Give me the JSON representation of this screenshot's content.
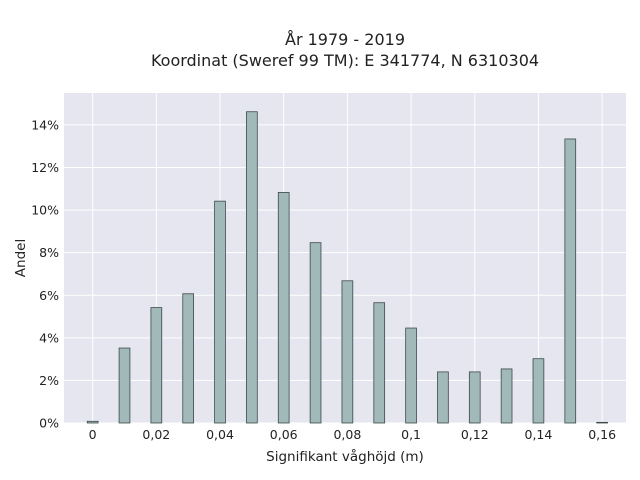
{
  "chart_data": {
    "type": "bar",
    "title": "År 1979 - 2019",
    "subtitle": "Koordinat (Sweref 99 TM): E 341774, N 6310304",
    "xlabel": "Signifikant våghöjd (m)",
    "ylabel": "Andel",
    "xlim": [
      -0.009,
      0.1675
    ],
    "ylim": [
      0,
      0.155
    ],
    "x_ticks": [
      0,
      0.02,
      0.04,
      0.06,
      0.08,
      0.1,
      0.12,
      0.14,
      0.16
    ],
    "x_tick_labels": [
      "0",
      "0,02",
      "0,04",
      "0,06",
      "0,08",
      "0,1",
      "0,12",
      "0,14",
      "0,16"
    ],
    "y_ticks": [
      0,
      0.02,
      0.04,
      0.06,
      0.08,
      0.1,
      0.12,
      0.14
    ],
    "y_tick_labels": [
      "0%",
      "2%",
      "4%",
      "6%",
      "8%",
      "10%",
      "12%",
      "14%"
    ],
    "grid": true,
    "colors": {
      "bar_fill": "#a2b9b9",
      "bar_stroke": "#3c4a48",
      "plot_bg": "#e5e6ef",
      "grid": "#ffffff"
    },
    "x": [
      0,
      0.01,
      0.02,
      0.03,
      0.04,
      0.05,
      0.06,
      0.07,
      0.08,
      0.09,
      0.1,
      0.11,
      0.12,
      0.13,
      0.14,
      0.15,
      0.16
    ],
    "values": [
      0.0008,
      0.0352,
      0.0542,
      0.0607,
      0.1042,
      0.1462,
      0.1083,
      0.0847,
      0.0668,
      0.0565,
      0.0446,
      0.024,
      0.024,
      0.0254,
      0.0302,
      0.1334,
      0.0003
    ]
  }
}
